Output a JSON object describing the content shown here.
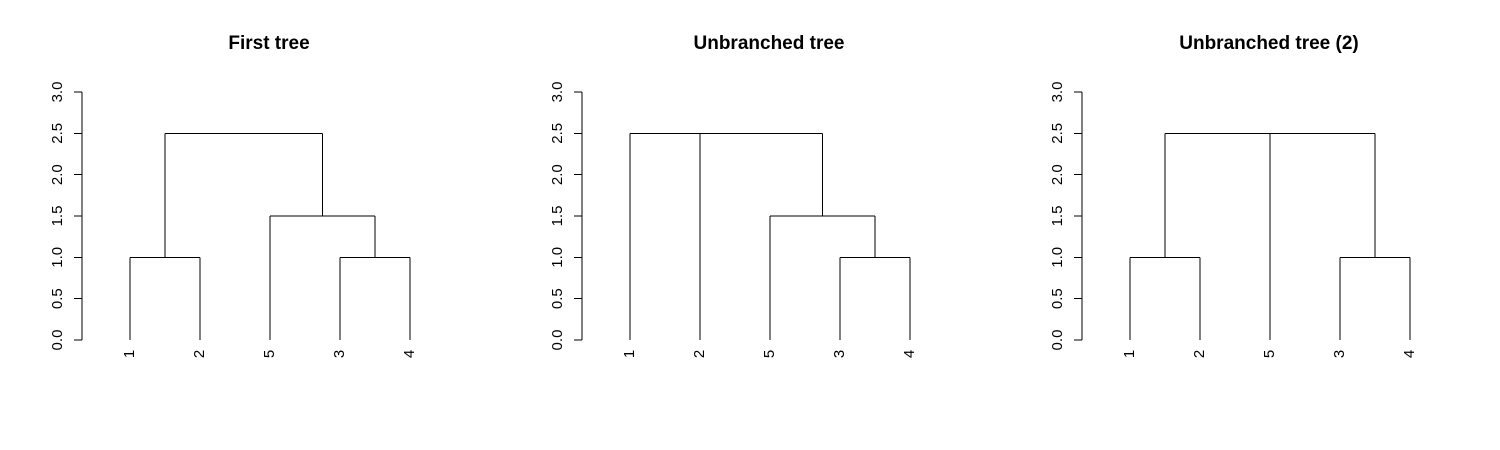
{
  "panels": [
    {
      "title": "First tree",
      "y_ticks": [
        "0.0",
        "0.5",
        "1.0",
        "1.5",
        "2.0",
        "2.5",
        "3.0"
      ],
      "leaves": [
        "1",
        "2",
        "5",
        "3",
        "4"
      ],
      "merges": [
        {
          "children": [
            "leaf:0",
            "leaf:1"
          ],
          "height": 1.0
        },
        {
          "children": [
            "leaf:3",
            "leaf:4"
          ],
          "height": 1.0
        },
        {
          "children": [
            "leaf:2",
            "node:1"
          ],
          "height": 1.5
        },
        {
          "children": [
            "node:0",
            "node:2"
          ],
          "height": 2.5
        }
      ]
    },
    {
      "title": "Unbranched tree",
      "y_ticks": [
        "0.0",
        "0.5",
        "1.0",
        "1.5",
        "2.0",
        "2.5",
        "3.0"
      ],
      "leaves": [
        "1",
        "2",
        "5",
        "3",
        "4"
      ],
      "merges": [
        {
          "children": [
            "leaf:3",
            "leaf:4"
          ],
          "height": 1.0
        },
        {
          "children": [
            "leaf:2",
            "node:0"
          ],
          "height": 1.5
        },
        {
          "children": [
            "leaf:0",
            "leaf:1",
            "node:1"
          ],
          "height": 2.5
        }
      ]
    },
    {
      "title": "Unbranched tree (2)",
      "y_ticks": [
        "0.0",
        "0.5",
        "1.0",
        "1.5",
        "2.0",
        "2.5",
        "3.0"
      ],
      "leaves": [
        "1",
        "2",
        "5",
        "3",
        "4"
      ],
      "merges": [
        {
          "children": [
            "leaf:0",
            "leaf:1"
          ],
          "height": 1.0
        },
        {
          "children": [
            "leaf:3",
            "leaf:4"
          ],
          "height": 1.0
        },
        {
          "children": [
            "node:0",
            "leaf:2",
            "node:1"
          ],
          "height": 2.5
        }
      ]
    }
  ]
}
